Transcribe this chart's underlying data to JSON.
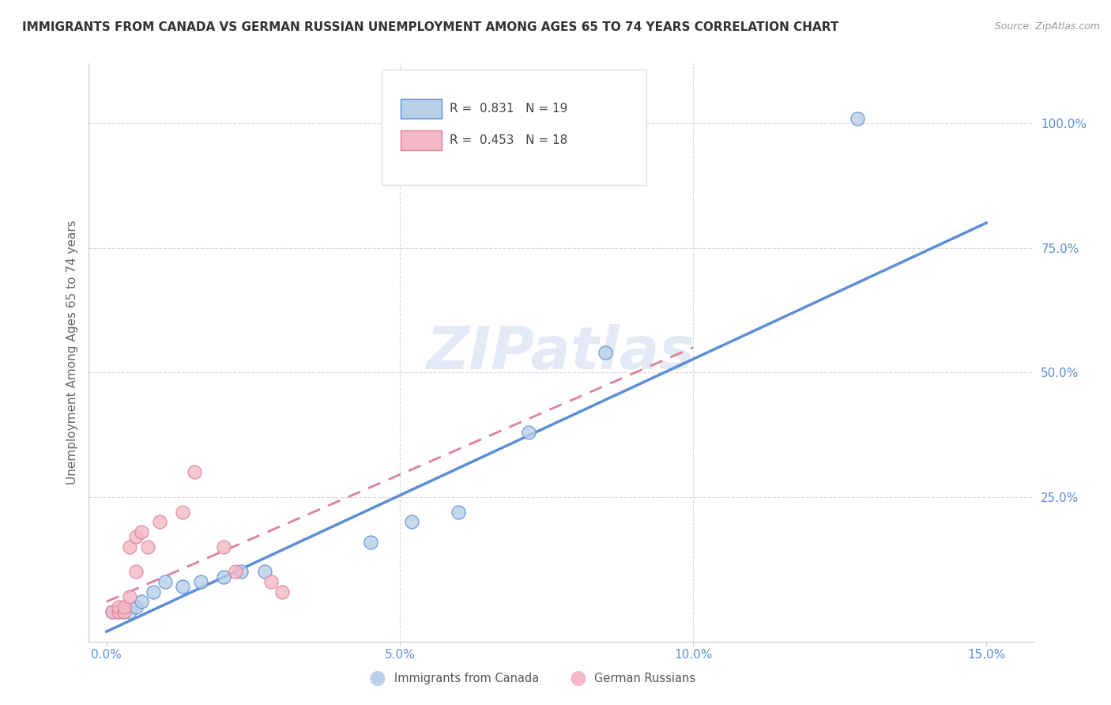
{
  "title": "IMMIGRANTS FROM CANADA VS GERMAN RUSSIAN UNEMPLOYMENT AMONG AGES 65 TO 74 YEARS CORRELATION CHART",
  "source": "Source: ZipAtlas.com",
  "ylabel": "Unemployment Among Ages 65 to 74 years",
  "blue_R": 0.831,
  "blue_N": 19,
  "pink_R": 0.453,
  "pink_N": 18,
  "blue_color": "#b8d0e8",
  "blue_line_color": "#5b8ed6",
  "pink_color": "#f5b8c8",
  "pink_line_color": "#e08098",
  "blue_label": "Immigrants from Canada",
  "pink_label": "German Russians",
  "watermark": "ZIPatlas",
  "background_color": "#ffffff",
  "grid_color": "#d8d8d8",
  "blue_x": [
    0.001,
    0.002,
    0.003,
    0.004,
    0.005,
    0.006,
    0.008,
    0.01,
    0.013,
    0.016,
    0.02,
    0.023,
    0.027,
    0.045,
    0.052,
    0.06,
    0.072,
    0.085,
    0.128
  ],
  "blue_y": [
    0.02,
    0.02,
    0.02,
    0.02,
    0.03,
    0.04,
    0.06,
    0.08,
    0.07,
    0.08,
    0.09,
    0.1,
    0.1,
    0.16,
    0.2,
    0.22,
    0.38,
    0.54,
    1.01
  ],
  "pink_x": [
    0.001,
    0.002,
    0.002,
    0.003,
    0.003,
    0.004,
    0.004,
    0.005,
    0.005,
    0.006,
    0.007,
    0.009,
    0.013,
    0.015,
    0.02,
    0.022,
    0.028,
    0.03
  ],
  "pink_y": [
    0.02,
    0.02,
    0.03,
    0.02,
    0.03,
    0.05,
    0.15,
    0.17,
    0.1,
    0.18,
    0.15,
    0.2,
    0.22,
    0.3,
    0.15,
    0.1,
    0.08,
    0.06
  ],
  "xlim": [
    -0.003,
    0.158
  ],
  "ylim": [
    -0.04,
    1.12
  ],
  "xticks": [
    0.0,
    0.05,
    0.1,
    0.15
  ],
  "xticklabels": [
    "0.0%",
    "5.0%",
    "10.0%",
    "15.0%"
  ],
  "right_yticks": [
    0.0,
    0.25,
    0.5,
    0.75,
    1.0
  ],
  "right_yticklabels": [
    "",
    "25.0%",
    "50.0%",
    "75.0%",
    "100.0%"
  ],
  "blue_line_x": [
    0.0,
    0.15
  ],
  "blue_line_y": [
    -0.02,
    0.8
  ],
  "pink_line_x": [
    0.0,
    0.1
  ],
  "pink_line_y": [
    0.04,
    0.55
  ]
}
